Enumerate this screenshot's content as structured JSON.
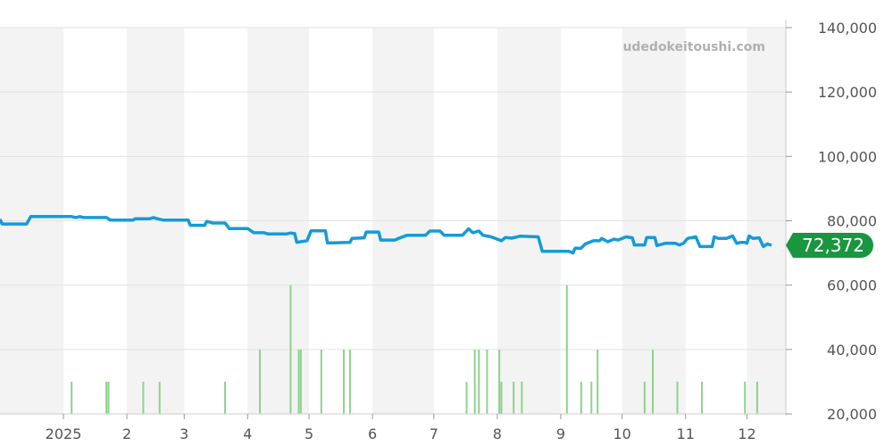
{
  "watermark": "udedokeitoushi.com",
  "current_value_label": "72,372",
  "colors": {
    "price_line": "#159bd8",
    "volume_bar": "#8fd18f",
    "badge": "#1a9641",
    "band": "#f3f3f3",
    "grid": "#e2e2e2"
  },
  "chart_data": {
    "type": "line",
    "title": "",
    "xlabel": "",
    "ylabel": "",
    "ylim": [
      20000,
      140000
    ],
    "grid": true,
    "y_ticks": [
      "20,000",
      "40,000",
      "60,000",
      "80,000",
      "100,000",
      "120,000",
      "140,000"
    ],
    "y_tick_values": [
      20000,
      40000,
      60000,
      80000,
      100000,
      120000,
      140000
    ],
    "x_range": [
      "2024-12-01",
      "2025-12-20"
    ],
    "x_ticks": [
      {
        "date": "2025-01-01",
        "label": "2025"
      },
      {
        "date": "2025-02-01",
        "label": "2"
      },
      {
        "date": "2025-03-01",
        "label": "3"
      },
      {
        "date": "2025-04-01",
        "label": "4"
      },
      {
        "date": "2025-05-01",
        "label": "5"
      },
      {
        "date": "2025-06-01",
        "label": "6"
      },
      {
        "date": "2025-07-01",
        "label": "7"
      },
      {
        "date": "2025-08-01",
        "label": "8"
      },
      {
        "date": "2025-09-01",
        "label": "9"
      },
      {
        "date": "2025-10-01",
        "label": "10"
      },
      {
        "date": "2025-11-01",
        "label": "11"
      },
      {
        "date": "2025-12-01",
        "label": "12"
      }
    ],
    "series": [
      {
        "kind": "line",
        "points": [
          [
            "2024-12-01",
            80500
          ],
          [
            "2024-12-02",
            79000
          ],
          [
            "2024-12-14",
            79000
          ],
          [
            "2024-12-16",
            81300
          ],
          [
            "2025-01-05",
            81300
          ],
          [
            "2025-01-07",
            81000
          ],
          [
            "2025-01-09",
            81300
          ],
          [
            "2025-01-11",
            81000
          ],
          [
            "2025-01-22",
            81000
          ],
          [
            "2025-01-24",
            80200
          ],
          [
            "2025-02-04",
            80200
          ],
          [
            "2025-02-05",
            80600
          ],
          [
            "2025-02-12",
            80600
          ],
          [
            "2025-02-14",
            81000
          ],
          [
            "2025-02-16",
            80600
          ],
          [
            "2025-02-19",
            80200
          ],
          [
            "2025-03-03",
            80200
          ],
          [
            "2025-03-04",
            78600
          ],
          [
            "2025-03-11",
            78600
          ],
          [
            "2025-03-12",
            79800
          ],
          [
            "2025-03-15",
            79300
          ],
          [
            "2025-03-21",
            79300
          ],
          [
            "2025-03-23",
            77600
          ],
          [
            "2025-03-25",
            77600
          ],
          [
            "2025-03-28",
            77600
          ],
          [
            "2025-04-01",
            77600
          ],
          [
            "2025-04-04",
            76300
          ],
          [
            "2025-04-09",
            76300
          ],
          [
            "2025-04-11",
            75900
          ],
          [
            "2025-04-20",
            75900
          ],
          [
            "2025-04-22",
            76200
          ],
          [
            "2025-04-24",
            76000
          ],
          [
            "2025-04-25",
            73300
          ],
          [
            "2025-04-30",
            73800
          ],
          [
            "2025-05-02",
            76900
          ],
          [
            "2025-05-09",
            76900
          ],
          [
            "2025-05-10",
            73100
          ],
          [
            "2025-05-21",
            73300
          ],
          [
            "2025-05-22",
            74500
          ],
          [
            "2025-05-28",
            74700
          ],
          [
            "2025-05-29",
            76500
          ],
          [
            "2025-06-04",
            76500
          ],
          [
            "2025-06-05",
            74000
          ],
          [
            "2025-06-12",
            74000
          ],
          [
            "2025-06-14",
            74600
          ],
          [
            "2025-06-18",
            75500
          ],
          [
            "2025-06-27",
            75500
          ],
          [
            "2025-06-29",
            76800
          ],
          [
            "2025-07-04",
            76800
          ],
          [
            "2025-07-06",
            75500
          ],
          [
            "2025-07-15",
            75500
          ],
          [
            "2025-07-18",
            77500
          ],
          [
            "2025-07-20",
            76300
          ],
          [
            "2025-07-23",
            76800
          ],
          [
            "2025-07-25",
            75500
          ],
          [
            "2025-07-29",
            75000
          ],
          [
            "2025-07-31",
            74500
          ],
          [
            "2025-08-03",
            73800
          ],
          [
            "2025-08-05",
            74800
          ],
          [
            "2025-08-08",
            74600
          ],
          [
            "2025-08-12",
            75200
          ],
          [
            "2025-08-21",
            75000
          ],
          [
            "2025-08-23",
            70500
          ],
          [
            "2025-09-05",
            70500
          ],
          [
            "2025-09-07",
            70000
          ],
          [
            "2025-09-08",
            71500
          ],
          [
            "2025-09-11",
            71500
          ],
          [
            "2025-09-13",
            72800
          ],
          [
            "2025-09-17",
            73800
          ],
          [
            "2025-09-20",
            73800
          ],
          [
            "2025-09-21",
            74500
          ],
          [
            "2025-09-24",
            73500
          ],
          [
            "2025-09-27",
            74300
          ],
          [
            "2025-09-29",
            74000
          ],
          [
            "2025-10-03",
            75000
          ],
          [
            "2025-10-06",
            74700
          ],
          [
            "2025-10-07",
            72500
          ],
          [
            "2025-10-12",
            72500
          ],
          [
            "2025-10-13",
            74800
          ],
          [
            "2025-10-17",
            74800
          ],
          [
            "2025-10-18",
            72300
          ],
          [
            "2025-10-22",
            73000
          ],
          [
            "2025-10-27",
            73000
          ],
          [
            "2025-10-29",
            72500
          ],
          [
            "2025-10-31",
            73000
          ],
          [
            "2025-11-02",
            74500
          ],
          [
            "2025-11-06",
            75000
          ],
          [
            "2025-11-08",
            72000
          ],
          [
            "2025-11-14",
            72000
          ],
          [
            "2025-11-15",
            75000
          ],
          [
            "2025-11-17",
            74500
          ],
          [
            "2025-11-21",
            74500
          ],
          [
            "2025-11-24",
            75300
          ],
          [
            "2025-11-26",
            73000
          ],
          [
            "2025-11-28",
            73300
          ],
          [
            "2025-11-30",
            73300
          ],
          [
            "2025-12-01",
            73000
          ],
          [
            "2025-12-02",
            75300
          ],
          [
            "2025-12-04",
            74500
          ],
          [
            "2025-12-07",
            74700
          ],
          [
            "2025-12-09",
            72000
          ],
          [
            "2025-12-11",
            72800
          ],
          [
            "2025-12-13",
            72372
          ]
        ]
      },
      {
        "kind": "volume",
        "points": [
          [
            "2025-01-05",
            30000
          ],
          [
            "2025-01-22",
            30000
          ],
          [
            "2025-01-23",
            30000
          ],
          [
            "2025-02-09",
            30000
          ],
          [
            "2025-02-17",
            30000
          ],
          [
            "2025-03-21",
            30000
          ],
          [
            "2025-04-07",
            40000
          ],
          [
            "2025-04-22",
            60000
          ],
          [
            "2025-04-26",
            40000
          ],
          [
            "2025-04-27",
            40000
          ],
          [
            "2025-05-07",
            40000
          ],
          [
            "2025-05-18",
            40000
          ],
          [
            "2025-05-21",
            40000
          ],
          [
            "2025-07-17",
            30000
          ],
          [
            "2025-07-21",
            40000
          ],
          [
            "2025-07-23",
            40000
          ],
          [
            "2025-07-27",
            40000
          ],
          [
            "2025-08-02",
            40000
          ],
          [
            "2025-08-03",
            30000
          ],
          [
            "2025-08-09",
            30000
          ],
          [
            "2025-08-13",
            30000
          ],
          [
            "2025-09-04",
            60000
          ],
          [
            "2025-09-11",
            30000
          ],
          [
            "2025-09-16",
            30000
          ],
          [
            "2025-09-19",
            40000
          ],
          [
            "2025-10-12",
            30000
          ],
          [
            "2025-10-16",
            40000
          ],
          [
            "2025-10-28",
            30000
          ],
          [
            "2025-11-09",
            30000
          ],
          [
            "2025-11-30",
            30000
          ],
          [
            "2025-12-06",
            30000
          ]
        ]
      }
    ]
  }
}
